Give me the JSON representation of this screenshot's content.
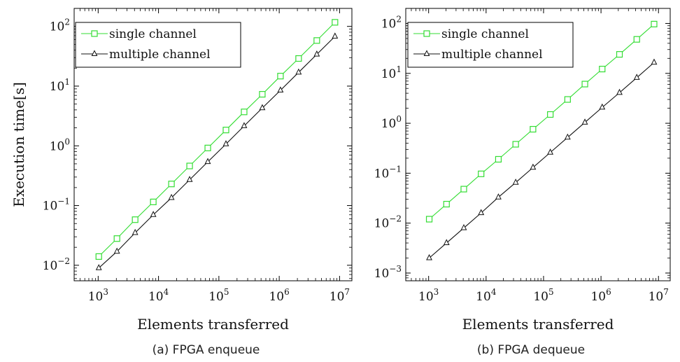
{
  "chart_data": [
    {
      "type": "line",
      "caption": "(a) FPGA enqueue",
      "xlabel": "Elements transferred",
      "ylabel": "Execution time[s]",
      "xscale": "log",
      "yscale": "log",
      "xlim": [
        400,
        16000000
      ],
      "ylim": [
        0.0055,
        200
      ],
      "x_ticks": [
        {
          "value": 1000,
          "base": "10",
          "exp": "3"
        },
        {
          "value": 10000,
          "base": "10",
          "exp": "4"
        },
        {
          "value": 100000,
          "base": "10",
          "exp": "5"
        },
        {
          "value": 1000000,
          "base": "10",
          "exp": "6"
        },
        {
          "value": 10000000,
          "base": "10",
          "exp": "7"
        }
      ],
      "y_ticks": [
        {
          "value": 0.01,
          "base": "10",
          "exp": "−2"
        },
        {
          "value": 0.1,
          "base": "10",
          "exp": "−1"
        },
        {
          "value": 1,
          "base": "10",
          "exp": "0"
        },
        {
          "value": 10,
          "base": "10",
          "exp": "1"
        },
        {
          "value": 100,
          "base": "10",
          "exp": "2"
        }
      ],
      "legend_position": "top-left",
      "x": [
        1024,
        2048,
        4096,
        8192,
        16384,
        32768,
        65536,
        131072,
        262144,
        524288,
        1048576,
        2097152,
        4194304,
        8388608
      ],
      "series": [
        {
          "name": "single channel",
          "color": "#33dd33",
          "marker": "square",
          "values": [
            0.014,
            0.028,
            0.058,
            0.115,
            0.23,
            0.46,
            0.92,
            1.84,
            3.7,
            7.3,
            14.7,
            29,
            58,
            117
          ]
        },
        {
          "name": "multiple channel",
          "color": "#111111",
          "marker": "triangle",
          "values": [
            0.009,
            0.017,
            0.035,
            0.07,
            0.135,
            0.27,
            0.54,
            1.07,
            2.15,
            4.3,
            8.5,
            17,
            34,
            68
          ]
        }
      ]
    },
    {
      "type": "line",
      "caption": "(b) FPGA dequeue",
      "xlabel": "Elements transferred",
      "ylabel": "",
      "xscale": "log",
      "yscale": "log",
      "xlim": [
        400,
        16000000
      ],
      "ylim": [
        0.0007,
        200
      ],
      "x_ticks": [
        {
          "value": 1000,
          "base": "10",
          "exp": "3"
        },
        {
          "value": 10000,
          "base": "10",
          "exp": "4"
        },
        {
          "value": 100000,
          "base": "10",
          "exp": "5"
        },
        {
          "value": 1000000,
          "base": "10",
          "exp": "6"
        },
        {
          "value": 10000000,
          "base": "10",
          "exp": "7"
        }
      ],
      "y_ticks": [
        {
          "value": 0.001,
          "base": "10",
          "exp": "−3"
        },
        {
          "value": 0.01,
          "base": "10",
          "exp": "−2"
        },
        {
          "value": 0.1,
          "base": "10",
          "exp": "−1"
        },
        {
          "value": 1,
          "base": "10",
          "exp": "0"
        },
        {
          "value": 10,
          "base": "10",
          "exp": "1"
        },
        {
          "value": 100,
          "base": "10",
          "exp": "2"
        }
      ],
      "legend_position": "top-left",
      "x": [
        1024,
        2048,
        4096,
        8192,
        16384,
        32768,
        65536,
        131072,
        262144,
        524288,
        1048576,
        2097152,
        4194304,
        8388608
      ],
      "series": [
        {
          "name": "single channel",
          "color": "#33dd33",
          "marker": "square",
          "values": [
            0.012,
            0.024,
            0.048,
            0.097,
            0.19,
            0.38,
            0.76,
            1.5,
            3.0,
            6.1,
            12.2,
            24,
            48,
            97
          ]
        },
        {
          "name": "multiple channel",
          "color": "#111111",
          "marker": "triangle",
          "values": [
            0.002,
            0.004,
            0.008,
            0.016,
            0.033,
            0.065,
            0.13,
            0.26,
            0.52,
            1.04,
            2.08,
            4.1,
            8.2,
            16.5
          ]
        }
      ]
    }
  ]
}
